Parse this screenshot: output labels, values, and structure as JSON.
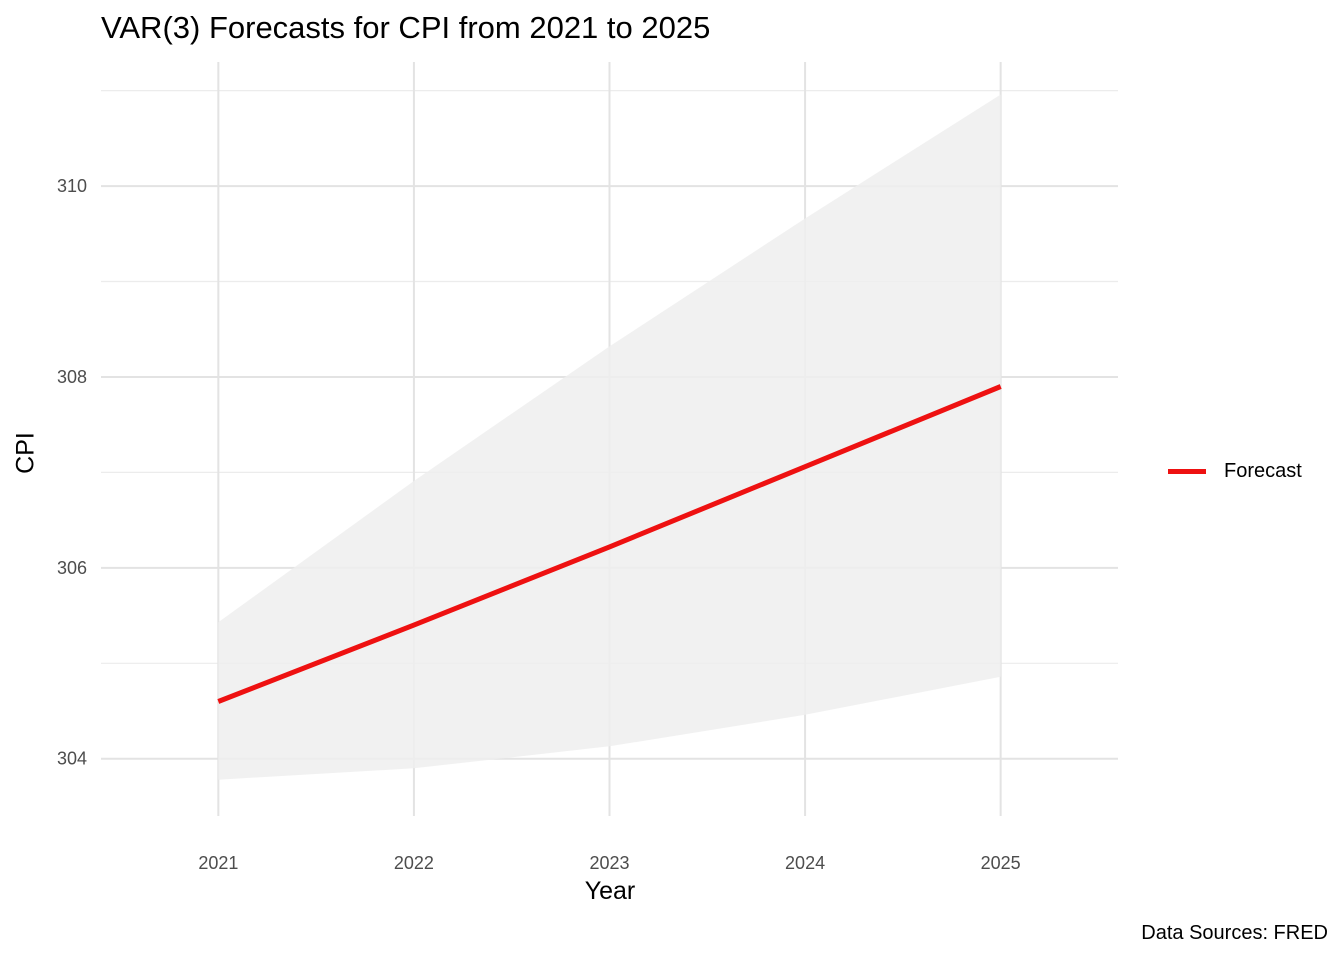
{
  "chart_data": {
    "type": "line",
    "title": "VAR(3) Forecasts for CPI from 2021 to 2025",
    "xlabel": "Year",
    "ylabel": "CPI",
    "caption": "Data Sources: FRED",
    "x": [
      2021,
      2022,
      2023,
      2024,
      2025
    ],
    "x_ticks": [
      "2021",
      "2022",
      "2023",
      "2024",
      "2025"
    ],
    "y_ticks": [
      "304",
      "306",
      "308",
      "310"
    ],
    "xlim": [
      2020.4,
      2025.6
    ],
    "ylim": [
      303.4,
      311.3
    ],
    "grid": true,
    "legend_position": "right",
    "series": [
      {
        "name": "Forecast",
        "values": [
          304.6,
          305.4,
          306.22,
          307.06,
          307.9
        ],
        "color": "#ee1111"
      }
    ],
    "band": {
      "lower": [
        303.78,
        303.9,
        304.13,
        304.46,
        304.86
      ],
      "upper": [
        305.43,
        306.91,
        308.32,
        309.66,
        310.96
      ],
      "color": "#efefef"
    }
  }
}
